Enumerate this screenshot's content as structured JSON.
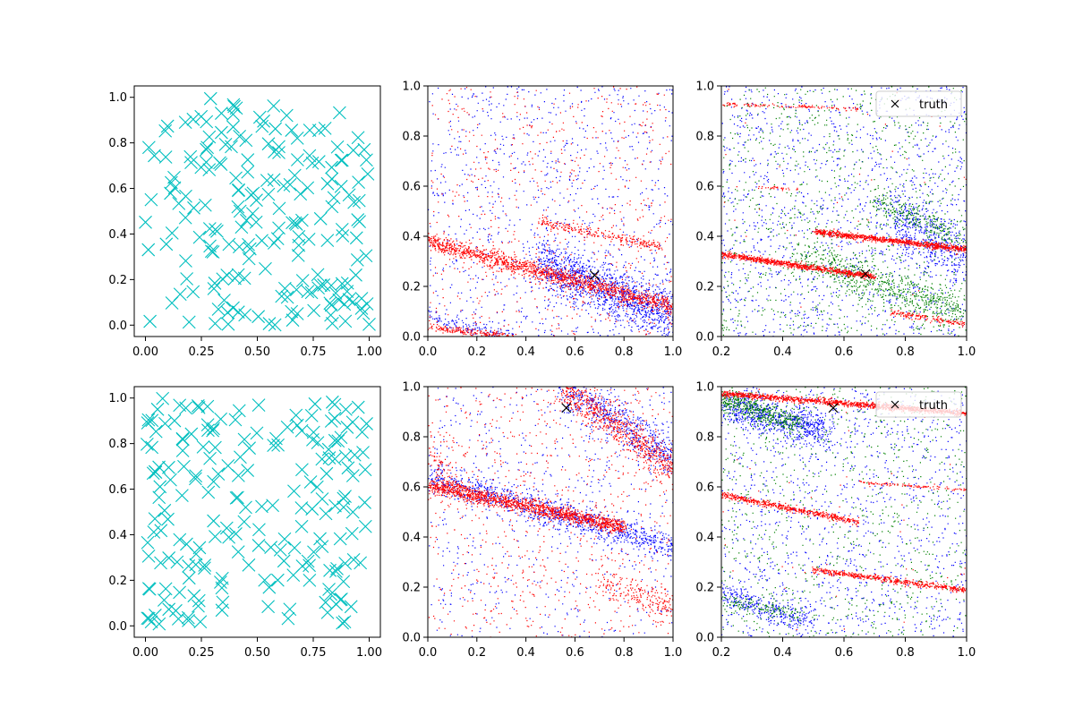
{
  "chart_data": [
    {
      "panel": "row1-col1",
      "type": "scatter",
      "marker": "x",
      "color": "#00bfbf",
      "xlim": [
        -0.05,
        1.05
      ],
      "ylim": [
        -0.05,
        1.05
      ],
      "xticks": [
        "0.00",
        "0.25",
        "0.50",
        "0.75",
        "1.00"
      ],
      "yticks": [
        "0.0",
        "0.2",
        "0.4",
        "0.6",
        "0.8",
        "1.0"
      ],
      "series": [
        {
          "n_points": 200,
          "distribution": "uniform [0,1] x [0,1]"
        }
      ]
    },
    {
      "panel": "row1-col2",
      "type": "scatter",
      "marker": "dot",
      "xlim": [
        0,
        1
      ],
      "ylim": [
        0,
        1
      ],
      "xticks": [
        "0.0",
        "0.2",
        "0.4",
        "0.6",
        "0.8",
        "1.0"
      ],
      "yticks": [
        "0.0",
        "0.2",
        "0.4",
        "0.6",
        "0.8",
        "1.0"
      ],
      "truth": {
        "x": 0.68,
        "y": 0.245
      },
      "series": [
        {
          "color": "#0000ff",
          "bands": [
            {
              "x0": 0.45,
              "y0": 0.3,
              "x1": 1.0,
              "y1": 0.08,
              "width": 0.1,
              "n": 1300
            },
            {
              "x0": 0.0,
              "y0": 0.08,
              "x1": 0.35,
              "y1": 0.0,
              "width": 0.03,
              "n": 120
            }
          ],
          "background": 900
        },
        {
          "color": "#ff0000",
          "bands": [
            {
              "x0": 0.0,
              "y0": 0.38,
              "x1": 1.0,
              "y1": 0.12,
              "width": 0.035,
              "n": 1400
            },
            {
              "x0": 0.45,
              "y0": 0.46,
              "x1": 0.95,
              "y1": 0.36,
              "width": 0.02,
              "n": 250
            },
            {
              "x0": 0.0,
              "y0": 0.04,
              "x1": 0.35,
              "y1": 0.0,
              "width": 0.015,
              "n": 200
            }
          ],
          "background": 650
        }
      ]
    },
    {
      "panel": "row1-col3",
      "type": "scatter",
      "marker": "dot",
      "xlim": [
        0.2,
        1.0
      ],
      "ylim": [
        0,
        1
      ],
      "xticks": [
        "0.2",
        "0.4",
        "0.6",
        "0.8",
        "1.0"
      ],
      "yticks": [
        "0.0",
        "0.2",
        "0.4",
        "0.6",
        "0.8",
        "1.0"
      ],
      "legend": {
        "label": "truth",
        "position": "top-right"
      },
      "truth": {
        "x": 0.67,
        "y": 0.25
      },
      "series": [
        {
          "color": "#0000ff",
          "bands": [
            {
              "x0": 0.75,
              "y0": 0.5,
              "x1": 1.0,
              "y1": 0.3,
              "width": 0.12,
              "n": 500
            }
          ],
          "background": 1300
        },
        {
          "color": "#008000",
          "bands": [
            {
              "x0": 0.45,
              "y0": 0.33,
              "x1": 1.0,
              "y1": 0.09,
              "width": 0.08,
              "n": 700
            },
            {
              "x0": 0.7,
              "y0": 0.55,
              "x1": 1.0,
              "y1": 0.38,
              "width": 0.06,
              "n": 250
            }
          ],
          "background": 900
        },
        {
          "color": "#ff0000",
          "bands": [
            {
              "x0": 0.2,
              "y0": 0.33,
              "x1": 0.7,
              "y1": 0.24,
              "width": 0.012,
              "n": 800
            },
            {
              "x0": 0.5,
              "y0": 0.42,
              "x1": 1.0,
              "y1": 0.35,
              "width": 0.012,
              "n": 900
            },
            {
              "x0": 0.2,
              "y0": 0.93,
              "x1": 0.65,
              "y1": 0.91,
              "width": 0.008,
              "n": 120
            },
            {
              "x0": 0.75,
              "y0": 0.1,
              "x1": 1.0,
              "y1": 0.05,
              "width": 0.012,
              "n": 150
            },
            {
              "x0": 0.3,
              "y0": 0.6,
              "x1": 0.45,
              "y1": 0.59,
              "width": 0.006,
              "n": 30
            }
          ],
          "background": 40
        }
      ]
    },
    {
      "panel": "row2-col1",
      "type": "scatter",
      "marker": "x",
      "color": "#00bfbf",
      "xlim": [
        -0.05,
        1.05
      ],
      "ylim": [
        -0.05,
        1.05
      ],
      "xticks": [
        "0.00",
        "0.25",
        "0.50",
        "0.75",
        "1.00"
      ],
      "yticks": [
        "0.0",
        "0.2",
        "0.4",
        "0.6",
        "0.8",
        "1.0"
      ],
      "series": [
        {
          "n_points": 200,
          "distribution": "uniform [0,1] x [0,1]"
        }
      ]
    },
    {
      "panel": "row2-col2",
      "type": "scatter",
      "marker": "dot",
      "xlim": [
        0,
        1
      ],
      "ylim": [
        0,
        1
      ],
      "xticks": [
        "0.0",
        "0.2",
        "0.4",
        "0.6",
        "0.8",
        "1.0"
      ],
      "yticks": [
        "0.0",
        "0.2",
        "0.4",
        "0.6",
        "0.8",
        "1.0"
      ],
      "truth": {
        "x": 0.565,
        "y": 0.915
      },
      "series": [
        {
          "color": "#0000ff",
          "bands": [
            {
              "x0": 0.0,
              "y0": 0.64,
              "x1": 1.0,
              "y1": 0.36,
              "width": 0.06,
              "n": 1000
            },
            {
              "x0": 0.55,
              "y0": 1.0,
              "x1": 1.0,
              "y1": 0.72,
              "width": 0.09,
              "n": 550
            }
          ],
          "background": 600
        },
        {
          "color": "#ff0000",
          "bands": [
            {
              "x0": 0.0,
              "y0": 0.61,
              "x1": 0.8,
              "y1": 0.44,
              "width": 0.03,
              "n": 1400
            },
            {
              "x0": 0.55,
              "y0": 1.0,
              "x1": 1.0,
              "y1": 0.68,
              "width": 0.07,
              "n": 700
            },
            {
              "x0": 0.7,
              "y0": 0.22,
              "x1": 1.0,
              "y1": 0.12,
              "width": 0.06,
              "n": 200
            },
            {
              "x0": 0.0,
              "y0": 0.75,
              "x1": 0.15,
              "y1": 0.55,
              "width": 0.05,
              "n": 100
            }
          ],
          "background": 750
        }
      ]
    },
    {
      "panel": "row2-col3",
      "type": "scatter",
      "marker": "dot",
      "xlim": [
        0.2,
        1.0
      ],
      "ylim": [
        0,
        1
      ],
      "xticks": [
        "0.2",
        "0.4",
        "0.6",
        "0.8",
        "1.0"
      ],
      "yticks": [
        "0.0",
        "0.2",
        "0.4",
        "0.6",
        "0.8",
        "1.0"
      ],
      "legend": {
        "label": "truth",
        "position": "top-right"
      },
      "truth": {
        "x": 0.565,
        "y": 0.915
      },
      "series": [
        {
          "color": "#0000ff",
          "bands": [
            {
              "x0": 0.2,
              "y0": 0.93,
              "x1": 0.55,
              "y1": 0.82,
              "width": 0.07,
              "n": 700
            },
            {
              "x0": 0.2,
              "y0": 0.17,
              "x1": 0.5,
              "y1": 0.06,
              "width": 0.05,
              "n": 300
            }
          ],
          "background": 1200
        },
        {
          "color": "#008000",
          "bands": [
            {
              "x0": 0.2,
              "y0": 0.95,
              "x1": 0.45,
              "y1": 0.85,
              "width": 0.05,
              "n": 450
            },
            {
              "x0": 0.2,
              "y0": 0.15,
              "x1": 0.45,
              "y1": 0.1,
              "width": 0.03,
              "n": 120
            }
          ],
          "background": 850
        },
        {
          "color": "#ff0000",
          "bands": [
            {
              "x0": 0.2,
              "y0": 0.975,
              "x1": 1.0,
              "y1": 0.895,
              "width": 0.012,
              "n": 1200
            },
            {
              "x0": 0.2,
              "y0": 0.57,
              "x1": 0.65,
              "y1": 0.46,
              "width": 0.012,
              "n": 500
            },
            {
              "x0": 0.5,
              "y0": 0.27,
              "x1": 1.0,
              "y1": 0.19,
              "width": 0.012,
              "n": 500
            },
            {
              "x0": 0.65,
              "y0": 0.62,
              "x1": 1.0,
              "y1": 0.59,
              "width": 0.006,
              "n": 100
            }
          ],
          "background": 40
        }
      ]
    }
  ]
}
